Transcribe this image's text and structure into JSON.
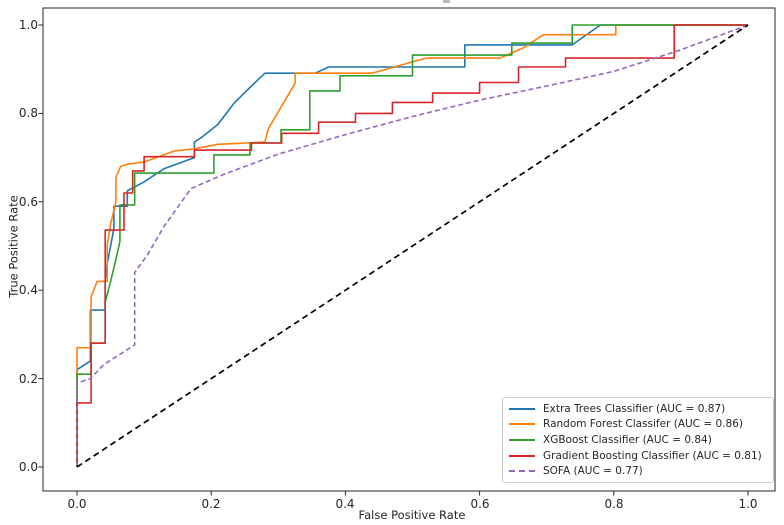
{
  "figure": {
    "background": "#ffffff",
    "axis_color": "#262626"
  },
  "chart_data": {
    "type": "line",
    "subtype": "roc-curves",
    "title": "",
    "xlabel": "False Positive Rate",
    "ylabel": "True Positive Rate",
    "xlim": [
      -0.05,
      1.05
    ],
    "ylim": [
      -0.05,
      1.05
    ],
    "grid": false,
    "legend_position": "lower right",
    "x_tick_labels": [
      "0.0",
      "0.2",
      "0.4",
      "0.6",
      "0.8",
      "1.0"
    ],
    "x_tick_values": [
      0.0,
      0.2,
      0.4,
      0.6,
      0.8,
      1.0
    ],
    "y_tick_labels": [
      "0.0",
      "0.2",
      "0.4",
      "0.6",
      "0.8",
      "1.0"
    ],
    "y_tick_values": [
      0.0,
      0.2,
      0.4,
      0.6,
      0.8,
      1.0
    ],
    "series": [
      {
        "name": "Extra Trees Classifier",
        "auc": 0.87,
        "legend_label": "Extra Trees Classifier (AUC = 0.87)",
        "color": "#1f77b4",
        "style": "solid",
        "in_legend": true,
        "points": [
          [
            0,
            0
          ],
          [
            0,
            0.22
          ],
          [
            0.02,
            0.24
          ],
          [
            0.02,
            0.355
          ],
          [
            0.042,
            0.355
          ],
          [
            0.042,
            0.423
          ],
          [
            0.045,
            0.46
          ],
          [
            0.05,
            0.5
          ],
          [
            0.055,
            0.54
          ],
          [
            0.055,
            0.59
          ],
          [
            0.075,
            0.59
          ],
          [
            0.075,
            0.625
          ],
          [
            0.1,
            0.645
          ],
          [
            0.13,
            0.675
          ],
          [
            0.175,
            0.7
          ],
          [
            0.175,
            0.735
          ],
          [
            0.185,
            0.745
          ],
          [
            0.21,
            0.775
          ],
          [
            0.235,
            0.825
          ],
          [
            0.26,
            0.862
          ],
          [
            0.28,
            0.891
          ],
          [
            0.355,
            0.891
          ],
          [
            0.375,
            0.905
          ],
          [
            0.578,
            0.905
          ],
          [
            0.578,
            0.955
          ],
          [
            0.738,
            0.955
          ],
          [
            0.78,
            1
          ],
          [
            1,
            1
          ]
        ]
      },
      {
        "name": "Random Forest Classifer",
        "auc": 0.86,
        "legend_label": "Random Forest Classifer (AUC = 0.86)",
        "color": "#ff7f0e",
        "style": "solid",
        "in_legend": true,
        "points": [
          [
            0,
            0
          ],
          [
            0,
            0.27
          ],
          [
            0.021,
            0.27
          ],
          [
            0.021,
            0.385
          ],
          [
            0.03,
            0.42
          ],
          [
            0.045,
            0.42
          ],
          [
            0.045,
            0.5
          ],
          [
            0.05,
            0.55
          ],
          [
            0.058,
            0.6
          ],
          [
            0.058,
            0.655
          ],
          [
            0.065,
            0.68
          ],
          [
            0.075,
            0.685
          ],
          [
            0.1,
            0.69
          ],
          [
            0.145,
            0.715
          ],
          [
            0.175,
            0.72
          ],
          [
            0.21,
            0.73
          ],
          [
            0.28,
            0.735
          ],
          [
            0.285,
            0.765
          ],
          [
            0.325,
            0.868
          ],
          [
            0.325,
            0.891
          ],
          [
            0.44,
            0.891
          ],
          [
            0.52,
            0.925
          ],
          [
            0.63,
            0.925
          ],
          [
            0.665,
            0.948
          ],
          [
            0.695,
            0.978
          ],
          [
            0.803,
            0.978
          ],
          [
            0.803,
            1
          ],
          [
            1,
            1
          ]
        ]
      },
      {
        "name": "XGBoost Classifier",
        "auc": 0.84,
        "legend_label": "XGBoost Classifier (AUC = 0.84)",
        "color": "#2ca02c",
        "style": "solid",
        "in_legend": true,
        "points": [
          [
            0,
            0
          ],
          [
            0,
            0.21
          ],
          [
            0.021,
            0.21
          ],
          [
            0.021,
            0.28
          ],
          [
            0.042,
            0.28
          ],
          [
            0.042,
            0.373
          ],
          [
            0.05,
            0.42
          ],
          [
            0.058,
            0.47
          ],
          [
            0.064,
            0.51
          ],
          [
            0.064,
            0.593
          ],
          [
            0.086,
            0.593
          ],
          [
            0.086,
            0.665
          ],
          [
            0.204,
            0.665
          ],
          [
            0.204,
            0.706
          ],
          [
            0.258,
            0.706
          ],
          [
            0.258,
            0.733
          ],
          [
            0.304,
            0.733
          ],
          [
            0.304,
            0.763
          ],
          [
            0.347,
            0.763
          ],
          [
            0.347,
            0.851
          ],
          [
            0.392,
            0.851
          ],
          [
            0.392,
            0.885
          ],
          [
            0.5,
            0.885
          ],
          [
            0.5,
            0.932
          ],
          [
            0.648,
            0.932
          ],
          [
            0.648,
            0.959
          ],
          [
            0.738,
            0.959
          ],
          [
            0.738,
            1
          ],
          [
            1,
            1
          ]
        ]
      },
      {
        "name": "Gradient Boosting Classifier",
        "auc": 0.81,
        "legend_label": "Gradient Boosting Classifier (AUC = 0.81)",
        "color": "#d62728",
        "style": "solid",
        "in_legend": true,
        "points": [
          [
            0,
            0
          ],
          [
            0,
            0.145
          ],
          [
            0.021,
            0.145
          ],
          [
            0.021,
            0.28
          ],
          [
            0.042,
            0.28
          ],
          [
            0.042,
            0.536
          ],
          [
            0.07,
            0.536
          ],
          [
            0.07,
            0.62
          ],
          [
            0.083,
            0.62
          ],
          [
            0.083,
            0.67
          ],
          [
            0.1,
            0.67
          ],
          [
            0.1,
            0.702
          ],
          [
            0.175,
            0.702
          ],
          [
            0.175,
            0.717
          ],
          [
            0.26,
            0.717
          ],
          [
            0.26,
            0.733
          ],
          [
            0.305,
            0.733
          ],
          [
            0.305,
            0.755
          ],
          [
            0.36,
            0.755
          ],
          [
            0.36,
            0.78
          ],
          [
            0.415,
            0.78
          ],
          [
            0.415,
            0.8
          ],
          [
            0.47,
            0.8
          ],
          [
            0.47,
            0.825
          ],
          [
            0.53,
            0.825
          ],
          [
            0.53,
            0.846
          ],
          [
            0.6,
            0.846
          ],
          [
            0.6,
            0.87
          ],
          [
            0.658,
            0.87
          ],
          [
            0.658,
            0.905
          ],
          [
            0.728,
            0.905
          ],
          [
            0.728,
            0.925
          ],
          [
            0.89,
            0.925
          ],
          [
            0.89,
            1
          ],
          [
            1,
            1
          ]
        ]
      },
      {
        "name": "SOFA",
        "auc": 0.77,
        "legend_label": "SOFA (AUC = 0.77)",
        "color": "#9467bd",
        "style": "dashed",
        "in_legend": true,
        "points": [
          [
            0,
            0
          ],
          [
            0,
            0.19
          ],
          [
            0.02,
            0.2
          ],
          [
            0.04,
            0.232
          ],
          [
            0.086,
            0.276
          ],
          [
            0.086,
            0.44
          ],
          [
            0.105,
            0.48
          ],
          [
            0.13,
            0.545
          ],
          [
            0.17,
            0.63
          ],
          [
            0.22,
            0.663
          ],
          [
            0.3,
            0.708
          ],
          [
            0.4,
            0.752
          ],
          [
            0.5,
            0.793
          ],
          [
            0.6,
            0.83
          ],
          [
            0.7,
            0.862
          ],
          [
            0.8,
            0.895
          ],
          [
            0.9,
            0.944
          ],
          [
            1,
            1
          ]
        ]
      },
      {
        "name": "Chance",
        "legend_label": "",
        "color": "#000000",
        "style": "dashed",
        "in_legend": false,
        "points": [
          [
            0,
            0
          ],
          [
            1,
            1
          ]
        ]
      }
    ]
  }
}
